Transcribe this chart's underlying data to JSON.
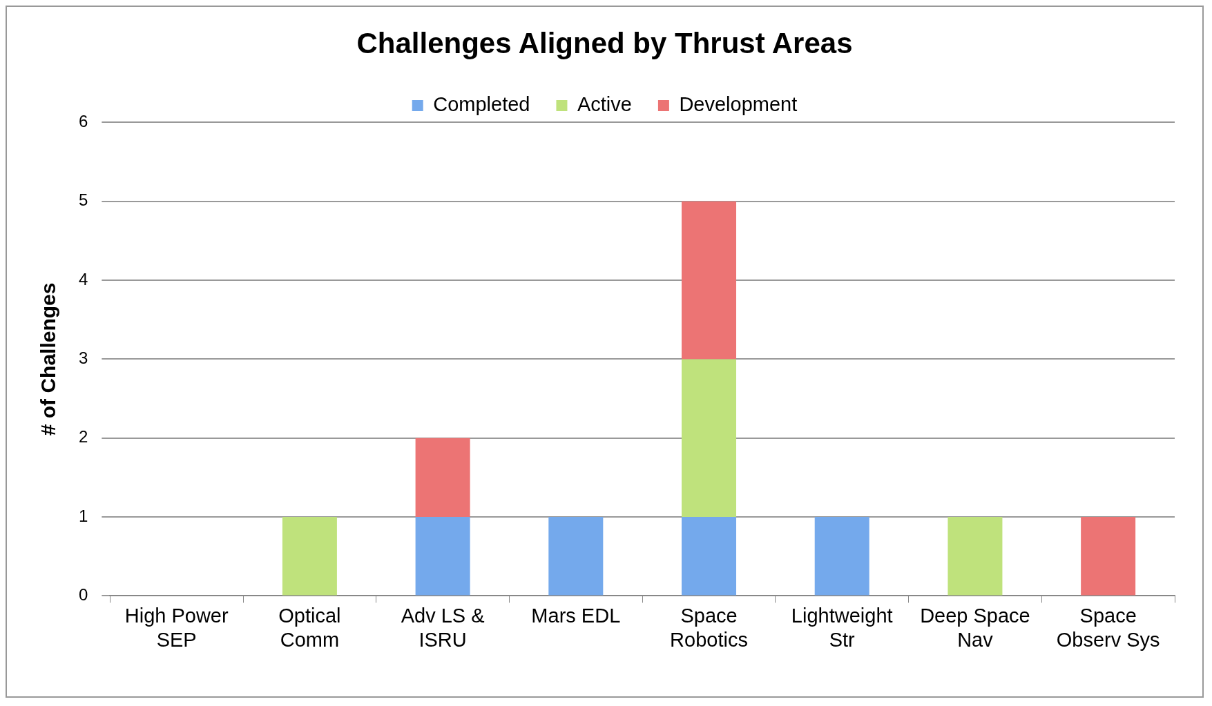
{
  "chart_data": {
    "type": "bar",
    "title": "Challenges Aligned by Thrust Areas",
    "ylabel": "# of Challenges",
    "categories": [
      "High Power\nSEP",
      "Optical\nComm",
      "Adv LS &\nISRU",
      "Mars EDL",
      "Space\nRobotics",
      "Lightweight\nStr",
      "Deep Space\nNav",
      "Space\nObserv Sys"
    ],
    "series": [
      {
        "name": "Completed",
        "color": "#74a9ec",
        "values": [
          0,
          0,
          1,
          1,
          1,
          1,
          0,
          0
        ]
      },
      {
        "name": "Active",
        "color": "#bfe27c",
        "values": [
          0,
          1,
          0,
          0,
          2,
          0,
          1,
          0
        ]
      },
      {
        "name": "Development",
        "color": "#ec7474",
        "values": [
          0,
          0,
          1,
          0,
          2,
          0,
          0,
          1
        ]
      }
    ],
    "stacked": true,
    "ylim": [
      0,
      6
    ],
    "yticks": [
      0,
      1,
      2,
      3,
      4,
      5,
      6
    ],
    "grid": "y",
    "legend": "top"
  }
}
